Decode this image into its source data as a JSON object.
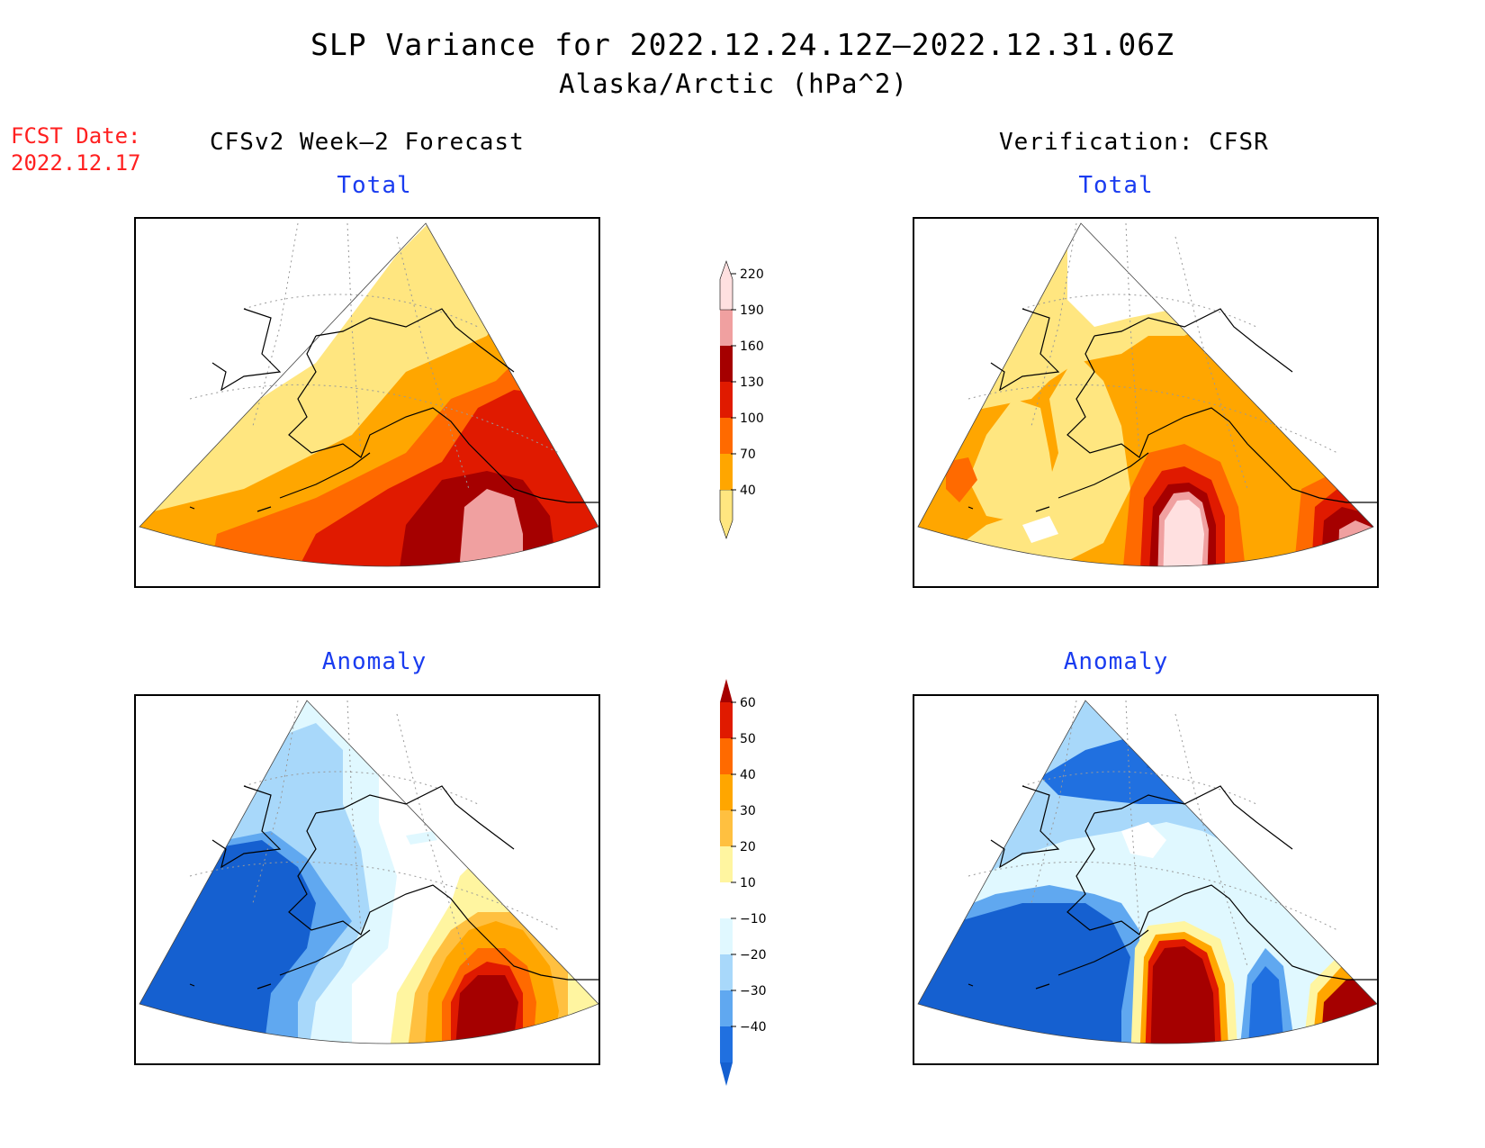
{
  "title": {
    "line1": "SLP Variance for 2022.12.24.12Z–2022.12.31.06Z",
    "line2": "Alaska/Arctic (hPa^2)"
  },
  "forecast_date": {
    "label": "FCST Date:",
    "value": "2022.12.17"
  },
  "columns": {
    "left_title": "CFSv2 Week–2 Forecast",
    "right_title": "Verification: CFSR"
  },
  "panels": {
    "top_left_title": "Total",
    "top_right_title": "Total",
    "bottom_left_title": "Anomaly",
    "bottom_right_title": "Anomaly"
  },
  "colorbar_total": {
    "levels": [
      "40",
      "70",
      "100",
      "130",
      "160",
      "190",
      "220"
    ],
    "colors": [
      "#ffe680",
      "#ffa600",
      "#ff6a00",
      "#e01a00",
      "#a50000",
      "#f0a0a0",
      "#ffe0e0"
    ]
  },
  "colorbar_anomaly": {
    "levels": [
      "60",
      "50",
      "40",
      "30",
      "20",
      "10",
      "−10",
      "−20",
      "−30",
      "−40"
    ],
    "colors": [
      "#a50000",
      "#e01a00",
      "#ff6a00",
      "#ffa600",
      "#ffc040",
      "#fff5a0",
      "#ffffff",
      "#e0f8ff",
      "#a8d8fa",
      "#60a8f0",
      "#2070e0",
      "#1560d0"
    ]
  }
}
